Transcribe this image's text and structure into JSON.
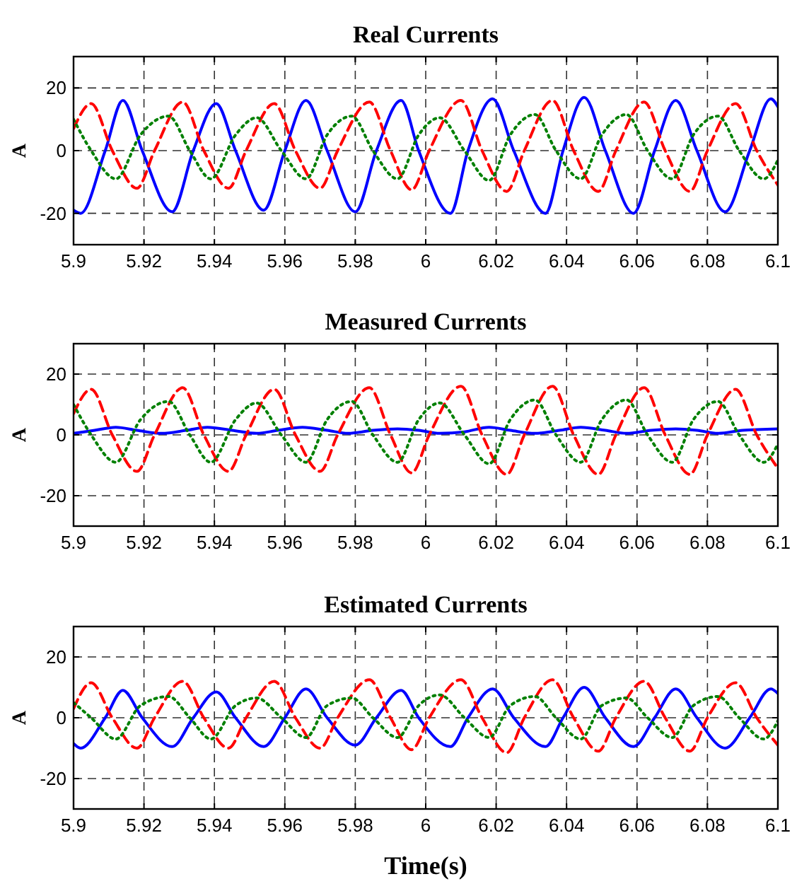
{
  "chart_data": [
    {
      "type": "line",
      "title": "Real Currents",
      "ylabel": "A",
      "xlim": [
        5.9,
        6.1
      ],
      "ylim": [
        -30,
        30
      ],
      "xticks": [
        5.9,
        5.92,
        5.94,
        5.96,
        5.98,
        6,
        6.02,
        6.04,
        6.06,
        6.08,
        6.1
      ],
      "yticks": [
        -20,
        0,
        20
      ],
      "grid": true,
      "series": [
        {
          "color": "#0000ff",
          "line_style": "solid",
          "x": [
            5.9,
            5.902,
            5.909,
            5.914,
            5.9195,
            5.928,
            5.934,
            5.9405,
            5.946,
            5.954,
            5.96,
            5.966,
            5.972,
            5.98,
            5.986,
            5.993,
            5.998,
            6.007,
            6.012,
            6.019,
            6.025,
            6.034,
            6.039,
            6.045,
            6.051,
            6.059,
            6.065,
            6.071,
            6.077,
            6.085,
            6.092,
            6.098,
            6.1
          ],
          "values": [
            -19,
            -20,
            0,
            16,
            0,
            -19.5,
            0,
            15,
            0,
            -19,
            0,
            16,
            0,
            -19.5,
            0,
            16,
            0,
            -20,
            0,
            16.5,
            0,
            -20,
            0,
            17,
            0,
            -20,
            0,
            16,
            0,
            -19.5,
            0,
            16.5,
            14
          ]
        },
        {
          "color": "#ff0000",
          "line_style": "dashed",
          "x": [
            5.9,
            5.905,
            5.911,
            5.918,
            5.923,
            5.931,
            5.937,
            5.944,
            5.949,
            5.957,
            5.963,
            5.97,
            5.975,
            5.984,
            5.99,
            5.996,
            6.001,
            6.01,
            6.016,
            6.023,
            6.028,
            6.036,
            6.042,
            6.049,
            6.054,
            6.062,
            6.068,
            6.075,
            6.08,
            6.088,
            6.094,
            6.1
          ],
          "values": [
            7,
            15,
            0,
            -12,
            0,
            15.5,
            0,
            -12,
            0,
            15,
            0,
            -12,
            0,
            15.5,
            0,
            -12.5,
            0,
            16,
            0,
            -13,
            0,
            16,
            0,
            -13,
            0,
            15.5,
            0,
            -13,
            0,
            15,
            0,
            -11
          ]
        },
        {
          "color": "#008000",
          "line_style": "dotted",
          "x": [
            5.9,
            5.905,
            5.912,
            5.919,
            5.927,
            5.933,
            5.939,
            5.946,
            5.952,
            5.959,
            5.966,
            5.972,
            5.979,
            5.985,
            5.992,
            5.998,
            6.004,
            6.011,
            6.018,
            6.024,
            6.031,
            6.037,
            6.044,
            6.05,
            6.057,
            6.063,
            6.07,
            6.076,
            6.083,
            6.089,
            6.096,
            6.1
          ],
          "values": [
            10,
            0,
            -9,
            5,
            11,
            0,
            -9,
            5,
            10.5,
            0,
            -9,
            5,
            11,
            0,
            -9,
            5,
            10.5,
            0,
            -9.5,
            5,
            11.5,
            0,
            -9,
            5,
            11.5,
            0,
            -9,
            5,
            11,
            0,
            -9,
            -3
          ]
        }
      ]
    },
    {
      "type": "line",
      "title": "Measured Currents",
      "ylabel": "A",
      "xlim": [
        5.9,
        6.1
      ],
      "ylim": [
        -30,
        30
      ],
      "xticks": [
        5.9,
        5.92,
        5.94,
        5.96,
        5.98,
        6,
        6.02,
        6.04,
        6.06,
        6.08,
        6.1
      ],
      "yticks": [
        -20,
        0,
        20
      ],
      "grid": true,
      "series": [
        {
          "color": "#0000ff",
          "line_style": "solid",
          "x": [
            5.9,
            5.906,
            5.912,
            5.918,
            5.925,
            5.932,
            5.938,
            5.945,
            5.952,
            5.958,
            5.965,
            5.972,
            5.978,
            5.985,
            5.992,
            5.998,
            6.004,
            6.011,
            6.018,
            6.024,
            6.031,
            6.038,
            6.044,
            6.051,
            6.057,
            6.064,
            6.071,
            6.077,
            6.083,
            6.09,
            6.1
          ],
          "values": [
            0.5,
            1.5,
            2.5,
            1.5,
            0.5,
            1.5,
            2.5,
            1.5,
            0.5,
            1.5,
            2.5,
            1.5,
            0.5,
            1.5,
            2,
            1.5,
            0.5,
            1,
            2.5,
            1.5,
            0.5,
            1.5,
            2.5,
            1.5,
            0.5,
            1.5,
            2,
            1.5,
            0.5,
            1.5,
            2
          ]
        },
        {
          "color": "#ff0000",
          "line_style": "dashed",
          "x": [
            5.9,
            5.905,
            5.911,
            5.918,
            5.923,
            5.931,
            5.937,
            5.944,
            5.949,
            5.957,
            5.963,
            5.97,
            5.975,
            5.984,
            5.99,
            5.996,
            6.001,
            6.01,
            6.016,
            6.023,
            6.028,
            6.036,
            6.042,
            6.049,
            6.054,
            6.062,
            6.068,
            6.075,
            6.08,
            6.088,
            6.094,
            6.1
          ],
          "values": [
            7,
            15,
            0,
            -12,
            0,
            15.5,
            0,
            -12,
            0,
            15,
            0,
            -12,
            0,
            15.5,
            0,
            -12.5,
            0,
            16,
            0,
            -13,
            0,
            16,
            0,
            -13,
            0,
            15.5,
            0,
            -13,
            0,
            15,
            0,
            -11
          ]
        },
        {
          "color": "#008000",
          "line_style": "dotted",
          "x": [
            5.9,
            5.905,
            5.912,
            5.919,
            5.927,
            5.933,
            5.939,
            5.946,
            5.952,
            5.959,
            5.966,
            5.972,
            5.979,
            5.985,
            5.992,
            5.998,
            6.004,
            6.011,
            6.018,
            6.024,
            6.031,
            6.037,
            6.044,
            6.05,
            6.057,
            6.063,
            6.07,
            6.076,
            6.083,
            6.089,
            6.096,
            6.1
          ],
          "values": [
            10,
            0,
            -9,
            5,
            11,
            0,
            -9,
            5,
            10.5,
            0,
            -9,
            5,
            11,
            0,
            -9,
            5,
            10.5,
            0,
            -9.5,
            5,
            11.5,
            0,
            -9,
            5,
            11.5,
            0,
            -9,
            5,
            11,
            0,
            -9,
            -3
          ]
        }
      ]
    },
    {
      "type": "line",
      "title": "Estimated Currents",
      "ylabel": "A",
      "xlabel": "Time(s)",
      "xlim": [
        5.9,
        6.1
      ],
      "ylim": [
        -30,
        30
      ],
      "xticks": [
        5.9,
        5.92,
        5.94,
        5.96,
        5.98,
        6,
        6.02,
        6.04,
        6.06,
        6.08,
        6.1
      ],
      "yticks": [
        -20,
        0,
        20
      ],
      "grid": true,
      "series": [
        {
          "color": "#0000ff",
          "line_style": "solid",
          "x": [
            5.9,
            5.902,
            5.909,
            5.914,
            5.9195,
            5.928,
            5.934,
            5.9405,
            5.946,
            5.954,
            5.96,
            5.966,
            5.972,
            5.98,
            5.986,
            5.993,
            5.998,
            6.007,
            6.012,
            6.019,
            6.025,
            6.034,
            6.039,
            6.045,
            6.051,
            6.059,
            6.065,
            6.071,
            6.077,
            6.085,
            6.092,
            6.098,
            6.1
          ],
          "values": [
            -8.5,
            -10,
            0,
            9,
            0,
            -9.5,
            0,
            8.5,
            0,
            -9.5,
            0,
            9.5,
            0,
            -9,
            0,
            9,
            0,
            -9.5,
            0,
            9.5,
            0,
            -9.5,
            0,
            10,
            0,
            -9.5,
            0,
            9.5,
            0,
            -10,
            0,
            9.5,
            8
          ]
        },
        {
          "color": "#ff0000",
          "line_style": "dashed",
          "x": [
            5.9,
            5.905,
            5.911,
            5.918,
            5.923,
            5.931,
            5.937,
            5.944,
            5.949,
            5.957,
            5.963,
            5.97,
            5.975,
            5.984,
            5.99,
            5.996,
            6.001,
            6.01,
            6.016,
            6.023,
            6.028,
            6.036,
            6.042,
            6.049,
            6.054,
            6.062,
            6.068,
            6.075,
            6.08,
            6.088,
            6.094,
            6.1
          ],
          "values": [
            3,
            11.5,
            0,
            -10,
            0,
            12,
            0,
            -10,
            0,
            12,
            0,
            -10,
            0,
            12.5,
            0,
            -10.5,
            0,
            12.5,
            0,
            -11.5,
            0,
            12.5,
            0,
            -11,
            0,
            12,
            0,
            -11,
            0,
            11.5,
            0,
            -9
          ]
        },
        {
          "color": "#008000",
          "line_style": "dotted",
          "x": [
            5.9,
            5.905,
            5.912,
            5.919,
            5.927,
            5.933,
            5.939,
            5.946,
            5.952,
            5.959,
            5.966,
            5.972,
            5.979,
            5.985,
            5.992,
            5.998,
            6.004,
            6.011,
            6.018,
            6.024,
            6.031,
            6.037,
            6.044,
            6.05,
            6.057,
            6.063,
            6.07,
            6.076,
            6.083,
            6.089,
            6.096,
            6.1
          ],
          "values": [
            5,
            0,
            -7,
            4,
            7,
            0,
            -7,
            4,
            6.5,
            0,
            -6.5,
            4,
            6.5,
            0,
            -6.5,
            4,
            7.5,
            0,
            -6.5,
            4,
            7,
            0,
            -7,
            4,
            6.5,
            0,
            -6.5,
            4,
            7,
            0,
            -7,
            -1
          ]
        }
      ]
    }
  ]
}
